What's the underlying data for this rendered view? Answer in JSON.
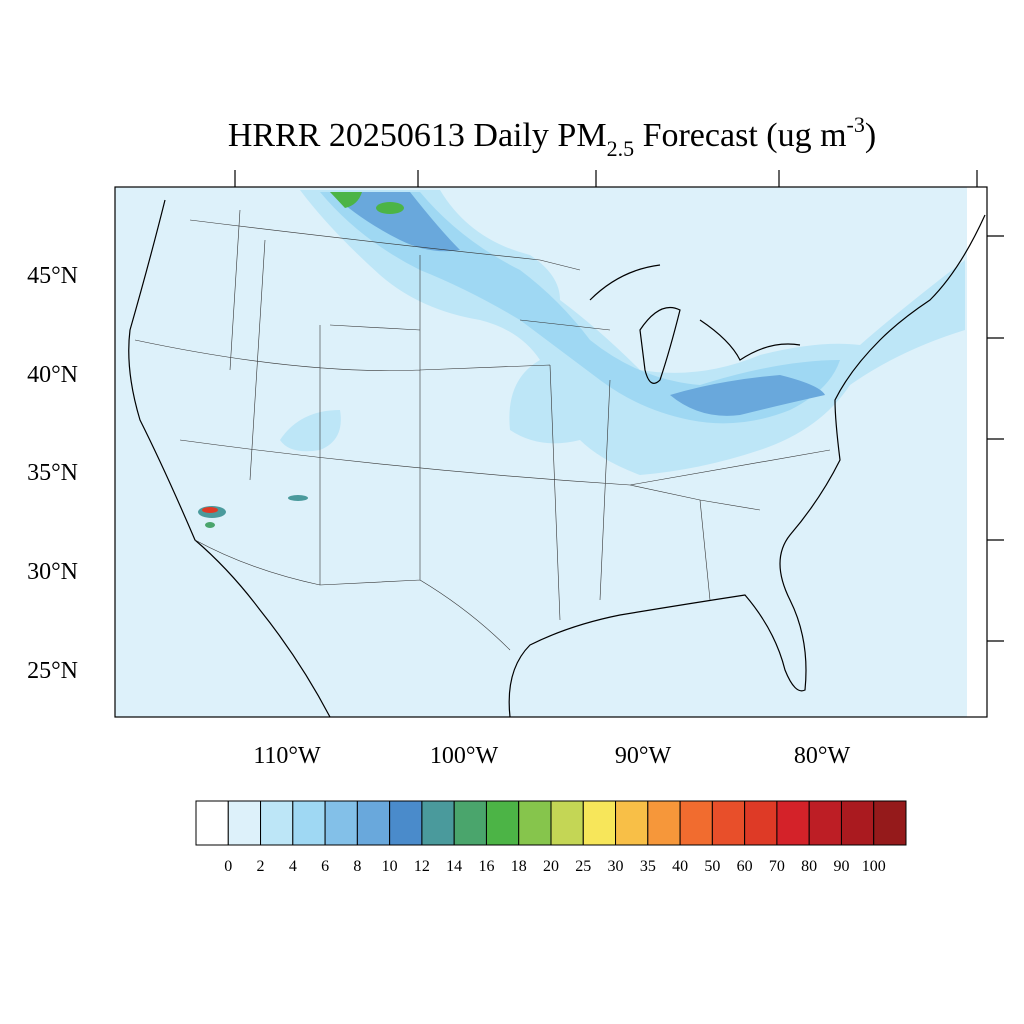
{
  "title": {
    "main": "HRRR 20250613 Daily PM",
    "sub": "2.5",
    "rest": " Forecast (ug m",
    "sup": "-3",
    "end": ")"
  },
  "map": {
    "lat_labels": [
      "45°N",
      "40°N",
      "35°N",
      "30°N",
      "25°N"
    ],
    "lon_labels": [
      "110°W",
      "100°W",
      "90°W",
      "80°W"
    ]
  },
  "colorbar": {
    "labels": [
      "0",
      "2",
      "4",
      "6",
      "8",
      "10",
      "12",
      "14",
      "16",
      "18",
      "20",
      "25",
      "30",
      "35",
      "40",
      "50",
      "60",
      "70",
      "80",
      "90",
      "100"
    ],
    "colors": [
      "#ffffff",
      "#ddf1fa",
      "#bde6f7",
      "#9fd8f3",
      "#83c0e8",
      "#69a8dc",
      "#4a8bcb",
      "#4a9a9c",
      "#4aa56c",
      "#4cb446",
      "#86c54c",
      "#c4d655",
      "#f7e65a",
      "#f8bf47",
      "#f6973a",
      "#f16c2f",
      "#e84f2a",
      "#de3a26",
      "#d42229",
      "#bd1e25",
      "#aa1a1f",
      "#951a1b"
    ]
  }
}
